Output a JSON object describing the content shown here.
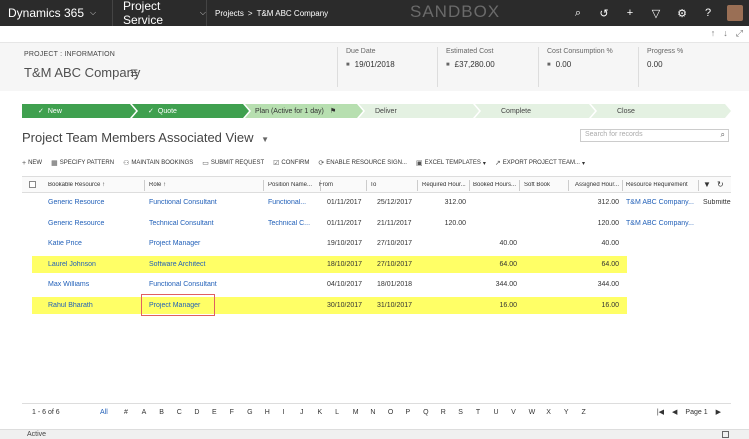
{
  "topnav": {
    "brand": "Dynamics 365",
    "module": "Project Service",
    "breadcrumbs": [
      "Projects",
      "T&M ABC Company"
    ],
    "environment": "SANDBOX",
    "icons": [
      "search-icon",
      "history-icon",
      "plus-icon",
      "filter-icon",
      "gear-icon",
      "help-icon",
      "avatar"
    ]
  },
  "header": {
    "entity_label": "PROJECT : INFORMATION",
    "record_title": "T&M ABC Company",
    "fields": [
      {
        "label": "Due Date",
        "value": "19/01/2018"
      },
      {
        "label": "Estimated Cost",
        "value": "£37,280.00"
      },
      {
        "label": "Cost Consumption %",
        "value": "0.00"
      },
      {
        "label": "Progress %",
        "value": "0.00"
      }
    ]
  },
  "bpf": {
    "stages": [
      {
        "label": "New",
        "state": "done"
      },
      {
        "label": "Quote",
        "state": "done"
      },
      {
        "label": "Plan (Active for 1 day)",
        "state": "active"
      },
      {
        "label": "Deliver",
        "state": "todo"
      },
      {
        "label": "Complete",
        "state": "todo"
      },
      {
        "label": "Close",
        "state": "todo"
      }
    ]
  },
  "view": {
    "title": "Project Team Members Associated View",
    "search_placeholder": "Search for records"
  },
  "toolbar": {
    "new": "NEW",
    "specify_pattern": "SPECIFY PATTERN",
    "maintain_bookings": "MAINTAIN BOOKINGS",
    "submit_request": "SUBMIT REQUEST",
    "confirm": "CONFIRM",
    "enable_resource": "ENABLE RESOURCE SIGN...",
    "excel_templates": "EXCEL TEMPLATES",
    "export": "EXPORT PROJECT TEAM..."
  },
  "grid": {
    "columns": [
      "Bookable Resource ↑",
      "Role ↑",
      "Position Name...",
      "From",
      "To",
      "Required Hour...",
      "Booked Hours...",
      "Soft Book",
      "Assigned Hour...",
      "Resource Requirement"
    ],
    "rows": [
      {
        "resource": "Generic Resource",
        "role": "Functional Consultant",
        "position": "Functional...",
        "from": "01/11/2017",
        "to": "25/12/2017",
        "required": "312.00",
        "booked": "",
        "soft": "",
        "assigned": "312.00",
        "requirement": "T&M ABC Company...",
        "extra": "Submitte",
        "highlight": false
      },
      {
        "resource": "Generic Resource",
        "role": "Technical Consultant",
        "position": "Technical C...",
        "from": "01/11/2017",
        "to": "21/11/2017",
        "required": "120.00",
        "booked": "",
        "soft": "",
        "assigned": "120.00",
        "requirement": "T&M ABC Company...",
        "extra": "",
        "highlight": false
      },
      {
        "resource": "Katie Price",
        "role": "Project Manager",
        "position": "",
        "from": "19/10/2017",
        "to": "27/10/2017",
        "required": "",
        "booked": "40.00",
        "soft": "",
        "assigned": "40.00",
        "requirement": "",
        "extra": "",
        "highlight": false
      },
      {
        "resource": "Laurel Johnson",
        "role": "Software Architect",
        "position": "",
        "from": "18/10/2017",
        "to": "27/10/2017",
        "required": "",
        "booked": "64.00",
        "soft": "",
        "assigned": "64.00",
        "requirement": "",
        "extra": "",
        "highlight": true
      },
      {
        "resource": "Max Williams",
        "role": "Functional Consultant",
        "position": "",
        "from": "04/10/2017",
        "to": "18/01/2018",
        "required": "",
        "booked": "344.00",
        "soft": "",
        "assigned": "344.00",
        "requirement": "",
        "extra": "",
        "highlight": false
      },
      {
        "resource": "Rahul Bharath",
        "role": "Project Manager",
        "position": "",
        "from": "30/10/2017",
        "to": "31/10/2017",
        "required": "",
        "booked": "16.00",
        "soft": "",
        "assigned": "16.00",
        "requirement": "",
        "extra": "",
        "highlight": true
      }
    ]
  },
  "footer": {
    "count": "1 - 6 of 6",
    "letters": [
      "All",
      "#",
      "A",
      "B",
      "C",
      "D",
      "E",
      "F",
      "G",
      "H",
      "I",
      "J",
      "K",
      "L",
      "M",
      "N",
      "O",
      "P",
      "Q",
      "R",
      "S",
      "T",
      "U",
      "V",
      "W",
      "X",
      "Y",
      "Z"
    ],
    "page": "Page 1"
  },
  "status": {
    "text": "Active"
  }
}
